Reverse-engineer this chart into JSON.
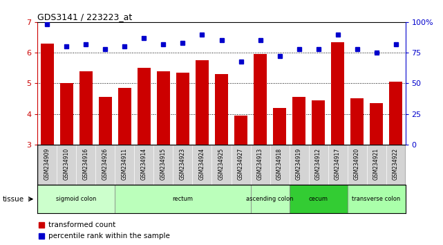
{
  "title": "GDS3141 / 223223_at",
  "samples": [
    "GSM234909",
    "GSM234910",
    "GSM234916",
    "GSM234926",
    "GSM234911",
    "GSM234914",
    "GSM234915",
    "GSM234923",
    "GSM234924",
    "GSM234925",
    "GSM234927",
    "GSM234913",
    "GSM234918",
    "GSM234919",
    "GSM234912",
    "GSM234917",
    "GSM234920",
    "GSM234921",
    "GSM234922"
  ],
  "bar_values": [
    6.3,
    5.0,
    5.4,
    4.55,
    4.85,
    5.5,
    5.4,
    5.35,
    5.75,
    5.3,
    3.95,
    5.95,
    4.2,
    4.55,
    4.45,
    6.35,
    4.5,
    4.35,
    5.05
  ],
  "dot_values": [
    98,
    80,
    82,
    78,
    80,
    87,
    82,
    83,
    90,
    85,
    68,
    85,
    72,
    78,
    78,
    90,
    78,
    75,
    82
  ],
  "ymin": 3,
  "ymax": 7,
  "y2min": 0,
  "y2max": 100,
  "yticks": [
    3,
    4,
    5,
    6,
    7
  ],
  "y2ticks": [
    0,
    25,
    50,
    75,
    100
  ],
  "y2labels": [
    "0",
    "25",
    "50",
    "75",
    "100%"
  ],
  "gridlines": [
    4,
    5,
    6
  ],
  "bar_color": "#CC0000",
  "dot_color": "#0000CC",
  "bar_bottom": 3,
  "tissue_groups": [
    {
      "label": "sigmoid colon",
      "start": 0,
      "end": 4
    },
    {
      "label": "rectum",
      "start": 4,
      "end": 11
    },
    {
      "label": "ascending colon",
      "start": 11,
      "end": 13
    },
    {
      "label": "cecum",
      "start": 13,
      "end": 16
    },
    {
      "label": "transverse colon",
      "start": 16,
      "end": 19
    }
  ],
  "tissue_colors": {
    "sigmoid colon": "#ccffcc",
    "rectum": "#bbffbb",
    "ascending colon": "#bbffbb",
    "cecum": "#33cc33",
    "transverse colon": "#aaffaa"
  },
  "xticklabel_bg": "#d4d4d4",
  "plot_border_color": "#000000",
  "legend_items": [
    {
      "label": "transformed count",
      "color": "#CC0000"
    },
    {
      "label": "percentile rank within the sample",
      "color": "#0000CC"
    }
  ]
}
